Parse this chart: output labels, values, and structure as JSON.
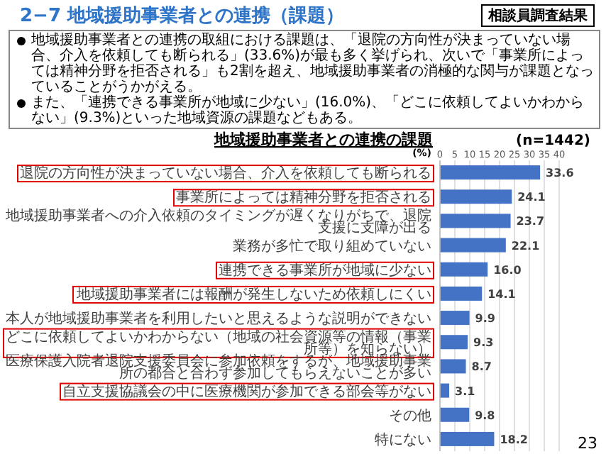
{
  "chart_data": {
    "type": "bar",
    "orientation": "horizontal",
    "title": "2−7 地域援助事業者との連携（課題）",
    "annotations": [
      "相談員調査結果",
      "地域援助事業者との連携の取組における課題は、「退院の方向性が決まっていない場合、介入を依頼しても断られる」(33.6%)が最も多く挙げられ、次いで「事業所によっては精神分野を拒否される」も2割を超え、地域援助事業者の消極的な関与が課題となっていることがうかがえる。",
      "また、「連携できる事業所が地域に少ない」(16.0%)、「どこに依頼してよいかわからない」(9.3%)といった地域資源の課題などもある。",
      "地域援助事業者との連携の課題",
      "(n=1442)",
      "23"
    ],
    "xlabel": "(%)",
    "categories": [
      "退院の方向性が決まっていない場合、介入を依頼しても断られる",
      "事業所によっては精神分野を拒否される",
      "地域援助事業者への介入依頼のタイミングが遅くなりがちで、退院支援に支障が出る",
      "業務が多忙で取り組めていない",
      "連携できる事業所が地域に少ない",
      "地域援助事業者には報酬が発生しないため依頼しにくい",
      "本人が地域援助事業者を利用したいと思えるような説明ができない",
      "どこに依頼してよいかわからない（地域の社会資源等の情報（事業所等）を知らない）",
      "医療保護入院者退院支援委員会に参加依頼をするが、地域援助事業所の都合と合わず参加してもらえないことが多い",
      "自立支援協議会の中に医療機関が参加できる部会等がない",
      "その他",
      "特にない"
    ],
    "values": [
      33.6,
      24.1,
      23.7,
      22.1,
      16.0,
      14.1,
      9.9,
      9.3,
      8.7,
      3.1,
      9.8,
      18.2
    ],
    "value_labels": [
      "33.6",
      "24.1",
      "23.7",
      "22.1",
      "16.0",
      "14.1",
      "9.9",
      "9.3",
      "8.7",
      "3.1",
      "9.8",
      "18.2"
    ],
    "color": "#4472c4",
    "xlim": [
      0,
      40
    ],
    "xticks": [
      0,
      5,
      10,
      15,
      20,
      25,
      30,
      35,
      40
    ],
    "grid": "x"
  }
}
